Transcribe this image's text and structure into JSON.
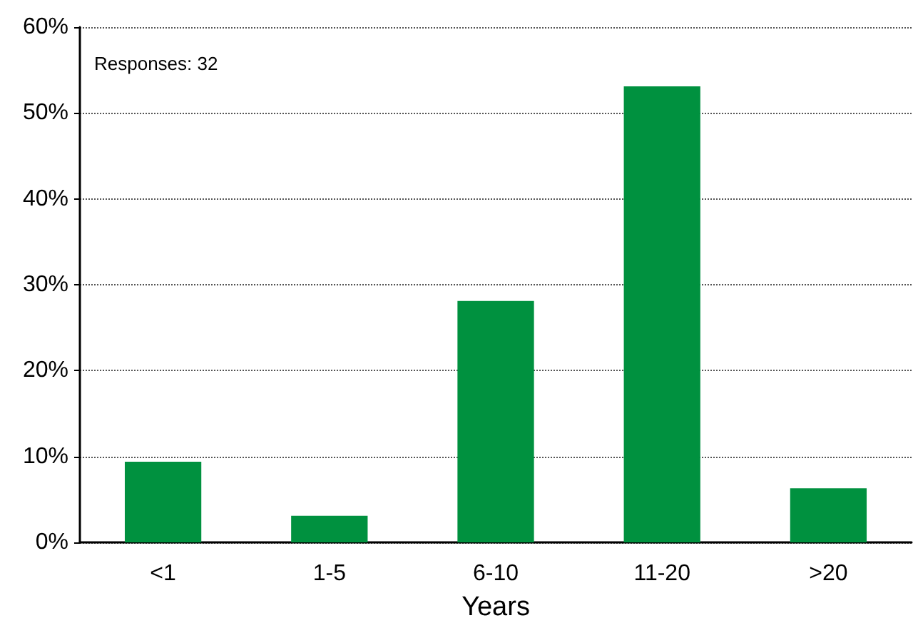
{
  "chart_data": {
    "type": "bar",
    "xlabel": "Years",
    "annotations": [
      "Responses: 32"
    ],
    "categories": [
      "<1",
      "1-5",
      "6-10",
      "11-20",
      ">20"
    ],
    "values": [
      9.4,
      3.1,
      28.1,
      53.1,
      6.3
    ],
    "color": "#00913f",
    "ylim": [
      0,
      60
    ],
    "yticks": [
      {
        "value": 0,
        "label": "0%"
      },
      {
        "value": 10,
        "label": "10%"
      },
      {
        "value": 20,
        "label": "20%"
      },
      {
        "value": 30,
        "label": "30%"
      },
      {
        "value": 40,
        "label": "40%"
      },
      {
        "value": 50,
        "label": "50%"
      },
      {
        "value": 60,
        "label": "60%"
      }
    ],
    "grid": "y"
  }
}
